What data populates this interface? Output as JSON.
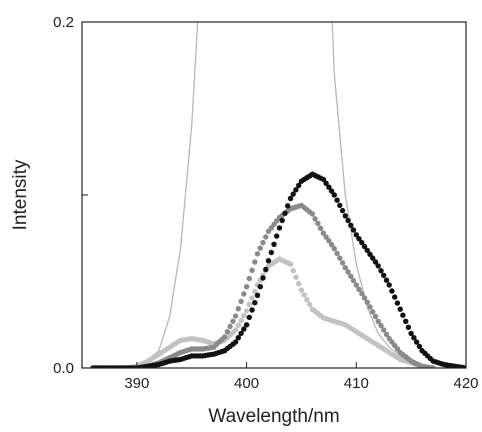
{
  "chart_data": {
    "type": "scatter",
    "xlabel": "Wavelength/nm",
    "ylabel": "Intensity",
    "xlim": [
      385,
      420
    ],
    "ylim": [
      0,
      0.2
    ],
    "x_ticks": [
      390,
      400,
      410,
      420
    ],
    "x_tick_labels": [
      "390",
      "400",
      "410",
      "420"
    ],
    "y_ticks": [
      0,
      0.1,
      0.2
    ],
    "y_tick_labels": [
      "0.0",
      "",
      "0.2"
    ],
    "grid": false,
    "legend": "none",
    "series": [
      {
        "style": "line",
        "color": "#b8b8b8",
        "x": [
          385,
          389,
          390.5,
          392,
          393,
          394,
          395,
          396,
          397,
          398,
          400,
          402,
          404,
          406,
          407.5,
          408,
          409,
          410,
          411,
          412,
          413,
          414,
          415,
          416,
          417,
          418
        ],
        "y": [
          0,
          0,
          0.002,
          0.01,
          0.03,
          0.07,
          0.14,
          0.25,
          0.25,
          0.25,
          0.25,
          0.25,
          0.25,
          0.25,
          0.25,
          0.17,
          0.1,
          0.06,
          0.035,
          0.02,
          0.012,
          0.007,
          0.003,
          0.001,
          0,
          0
        ]
      },
      {
        "style": "dots",
        "color": "#c2c2c2",
        "x": [
          386,
          388,
          389,
          390,
          391,
          392,
          393,
          394,
          395,
          396,
          397,
          398,
          399,
          400,
          401,
          402,
          403,
          404,
          405,
          406,
          407,
          408,
          409,
          410,
          411,
          412,
          413,
          414,
          415,
          416,
          417
        ],
        "y": [
          0,
          0,
          0,
          0.001,
          0.004,
          0.008,
          0.012,
          0.016,
          0.017,
          0.016,
          0.014,
          0.016,
          0.022,
          0.033,
          0.048,
          0.059,
          0.063,
          0.06,
          0.045,
          0.034,
          0.029,
          0.027,
          0.025,
          0.021,
          0.017,
          0.013,
          0.009,
          0.005,
          0.003,
          0.001,
          0
        ]
      },
      {
        "style": "dots",
        "color": "#8a8a8a",
        "x": [
          386,
          389,
          390,
          391,
          392,
          393,
          394,
          395,
          396,
          397,
          398,
          399,
          400,
          401,
          402,
          403,
          404,
          405,
          406,
          407,
          408,
          409,
          410,
          411,
          412,
          413,
          414,
          415,
          416,
          417
        ],
        "y": [
          0,
          0,
          0,
          0.001,
          0.003,
          0.006,
          0.009,
          0.011,
          0.011,
          0.012,
          0.018,
          0.03,
          0.047,
          0.066,
          0.079,
          0.087,
          0.092,
          0.094,
          0.089,
          0.078,
          0.069,
          0.058,
          0.048,
          0.038,
          0.027,
          0.017,
          0.009,
          0.004,
          0.001,
          0
        ]
      },
      {
        "style": "dots",
        "color": "#111111",
        "x": [
          386,
          390,
          391,
          392,
          393,
          394,
          395,
          396,
          397,
          398,
          399,
          400,
          401,
          402,
          403,
          404,
          405,
          406,
          407,
          408,
          409,
          410,
          411,
          412,
          413,
          414,
          415,
          416,
          417,
          418,
          419,
          420
        ],
        "y": [
          0,
          0,
          0.001,
          0.002,
          0.004,
          0.005,
          0.007,
          0.007,
          0.008,
          0.01,
          0.015,
          0.025,
          0.042,
          0.062,
          0.081,
          0.098,
          0.108,
          0.112,
          0.109,
          0.1,
          0.088,
          0.077,
          0.068,
          0.059,
          0.048,
          0.034,
          0.02,
          0.01,
          0.004,
          0.002,
          0.001,
          0
        ]
      }
    ]
  }
}
